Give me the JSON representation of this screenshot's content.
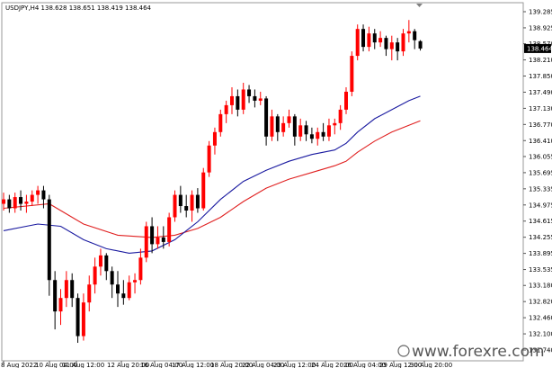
{
  "chart_data": {
    "type": "candlestick",
    "symbol_line": "USDJPY,H4  138.628 138.651 138.419 138.464",
    "y_ticks": [
      139.285,
      138.925,
      138.57,
      138.21,
      137.85,
      137.49,
      137.13,
      136.77,
      136.41,
      136.055,
      135.695,
      135.335,
      134.975,
      134.615,
      134.255,
      133.895,
      133.535,
      133.18,
      132.82,
      132.46,
      132.1,
      131.74
    ],
    "ylim": [
      131.74,
      139.285
    ],
    "current_price": "138.464",
    "x_labels": [
      "8 Aug 2022",
      "10 Aug 04:00",
      "11 Aug 12:00",
      "12 Aug 20:00",
      "16 Aug 04:00",
      "17 Aug 12:00",
      "18 Aug 20:00",
      "22 Aug 04:00",
      "23 Aug 12:00",
      "24 Aug 20:00",
      "26 Aug 04:00",
      "29 Aug 12:00",
      "30 Aug 20:00"
    ],
    "bull_color": "#ff0000",
    "bear_color": "#000000",
    "candles": [
      {
        "o": 135.0,
        "h": 135.25,
        "l": 134.85,
        "c": 135.1
      },
      {
        "o": 135.1,
        "h": 135.2,
        "l": 134.8,
        "c": 134.9
      },
      {
        "o": 134.9,
        "h": 135.25,
        "l": 134.8,
        "c": 135.15
      },
      {
        "o": 135.15,
        "h": 135.3,
        "l": 134.85,
        "c": 135.0
      },
      {
        "o": 135.0,
        "h": 135.2,
        "l": 134.8,
        "c": 135.05
      },
      {
        "o": 135.05,
        "h": 135.3,
        "l": 134.95,
        "c": 135.2
      },
      {
        "o": 135.2,
        "h": 135.4,
        "l": 135.0,
        "c": 135.3
      },
      {
        "o": 135.3,
        "h": 135.4,
        "l": 134.9,
        "c": 135.1
      },
      {
        "o": 135.1,
        "h": 135.2,
        "l": 132.95,
        "c": 133.3
      },
      {
        "o": 133.3,
        "h": 133.5,
        "l": 132.2,
        "c": 132.6
      },
      {
        "o": 132.6,
        "h": 133.1,
        "l": 132.3,
        "c": 132.9
      },
      {
        "o": 132.9,
        "h": 133.5,
        "l": 132.7,
        "c": 133.3
      },
      {
        "o": 133.3,
        "h": 133.45,
        "l": 132.7,
        "c": 132.9
      },
      {
        "o": 132.9,
        "h": 133.0,
        "l": 131.9,
        "c": 132.05
      },
      {
        "o": 132.05,
        "h": 133.0,
        "l": 131.95,
        "c": 132.8
      },
      {
        "o": 132.8,
        "h": 133.4,
        "l": 132.6,
        "c": 133.2
      },
      {
        "o": 133.2,
        "h": 133.8,
        "l": 133.0,
        "c": 133.6
      },
      {
        "o": 133.6,
        "h": 134.0,
        "l": 133.4,
        "c": 133.85
      },
      {
        "o": 133.85,
        "h": 133.9,
        "l": 133.3,
        "c": 133.5
      },
      {
        "o": 133.5,
        "h": 133.6,
        "l": 132.9,
        "c": 133.2
      },
      {
        "o": 133.2,
        "h": 133.5,
        "l": 132.7,
        "c": 133.0
      },
      {
        "o": 133.0,
        "h": 133.3,
        "l": 132.75,
        "c": 132.9
      },
      {
        "o": 132.9,
        "h": 133.4,
        "l": 132.85,
        "c": 133.25
      },
      {
        "o": 133.25,
        "h": 133.45,
        "l": 133.0,
        "c": 133.3
      },
      {
        "o": 133.3,
        "h": 134.0,
        "l": 133.2,
        "c": 133.8
      },
      {
        "o": 133.8,
        "h": 134.6,
        "l": 133.7,
        "c": 134.5
      },
      {
        "o": 134.5,
        "h": 134.7,
        "l": 133.9,
        "c": 134.1
      },
      {
        "o": 134.1,
        "h": 134.5,
        "l": 134.0,
        "c": 134.25
      },
      {
        "o": 134.25,
        "h": 134.5,
        "l": 134.0,
        "c": 134.15
      },
      {
        "o": 134.15,
        "h": 134.8,
        "l": 134.05,
        "c": 134.7
      },
      {
        "o": 134.7,
        "h": 135.3,
        "l": 134.6,
        "c": 135.2
      },
      {
        "o": 135.2,
        "h": 135.4,
        "l": 134.8,
        "c": 134.95
      },
      {
        "o": 134.95,
        "h": 135.2,
        "l": 134.7,
        "c": 134.85
      },
      {
        "o": 134.85,
        "h": 135.3,
        "l": 134.6,
        "c": 135.2
      },
      {
        "o": 135.2,
        "h": 135.35,
        "l": 134.8,
        "c": 134.9
      },
      {
        "o": 134.9,
        "h": 135.8,
        "l": 134.85,
        "c": 135.7
      },
      {
        "o": 135.7,
        "h": 136.4,
        "l": 135.6,
        "c": 136.3
      },
      {
        "o": 136.3,
        "h": 136.7,
        "l": 136.1,
        "c": 136.6
      },
      {
        "o": 136.6,
        "h": 137.1,
        "l": 136.5,
        "c": 137.0
      },
      {
        "o": 137.0,
        "h": 137.3,
        "l": 136.8,
        "c": 137.2
      },
      {
        "o": 137.2,
        "h": 137.6,
        "l": 137.0,
        "c": 137.4
      },
      {
        "o": 137.4,
        "h": 137.55,
        "l": 136.95,
        "c": 137.1
      },
      {
        "o": 137.1,
        "h": 137.7,
        "l": 137.0,
        "c": 137.55
      },
      {
        "o": 137.55,
        "h": 137.65,
        "l": 137.25,
        "c": 137.4
      },
      {
        "o": 137.4,
        "h": 137.55,
        "l": 137.15,
        "c": 137.3
      },
      {
        "o": 137.3,
        "h": 137.5,
        "l": 137.2,
        "c": 137.35
      },
      {
        "o": 137.35,
        "h": 137.4,
        "l": 136.3,
        "c": 136.5
      },
      {
        "o": 136.5,
        "h": 137.1,
        "l": 136.4,
        "c": 136.95
      },
      {
        "o": 136.95,
        "h": 137.0,
        "l": 136.4,
        "c": 136.6
      },
      {
        "o": 136.6,
        "h": 136.95,
        "l": 136.5,
        "c": 136.8
      },
      {
        "o": 136.8,
        "h": 137.1,
        "l": 136.7,
        "c": 136.95
      },
      {
        "o": 136.95,
        "h": 137.0,
        "l": 136.3,
        "c": 136.5
      },
      {
        "o": 136.5,
        "h": 136.9,
        "l": 136.4,
        "c": 136.75
      },
      {
        "o": 136.75,
        "h": 136.85,
        "l": 136.4,
        "c": 136.55
      },
      {
        "o": 136.55,
        "h": 136.7,
        "l": 136.35,
        "c": 136.45
      },
      {
        "o": 136.45,
        "h": 136.7,
        "l": 136.3,
        "c": 136.6
      },
      {
        "o": 136.6,
        "h": 136.8,
        "l": 136.4,
        "c": 136.5
      },
      {
        "o": 136.5,
        "h": 136.9,
        "l": 136.4,
        "c": 136.75
      },
      {
        "o": 136.75,
        "h": 136.9,
        "l": 136.55,
        "c": 136.8
      },
      {
        "o": 136.8,
        "h": 137.2,
        "l": 136.65,
        "c": 137.1
      },
      {
        "o": 137.1,
        "h": 137.6,
        "l": 137.0,
        "c": 137.5
      },
      {
        "o": 137.5,
        "h": 138.4,
        "l": 137.4,
        "c": 138.3
      },
      {
        "o": 138.3,
        "h": 139.0,
        "l": 138.2,
        "c": 138.9
      },
      {
        "o": 138.9,
        "h": 139.0,
        "l": 138.4,
        "c": 138.5
      },
      {
        "o": 138.5,
        "h": 138.95,
        "l": 138.4,
        "c": 138.8
      },
      {
        "o": 138.8,
        "h": 138.9,
        "l": 138.45,
        "c": 138.6
      },
      {
        "o": 138.6,
        "h": 138.85,
        "l": 138.5,
        "c": 138.7
      },
      {
        "o": 138.7,
        "h": 138.75,
        "l": 138.3,
        "c": 138.45
      },
      {
        "o": 138.45,
        "h": 138.75,
        "l": 138.2,
        "c": 138.6
      },
      {
        "o": 138.6,
        "h": 138.7,
        "l": 138.2,
        "c": 138.4
      },
      {
        "o": 138.4,
        "h": 138.9,
        "l": 138.3,
        "c": 138.8
      },
      {
        "o": 138.8,
        "h": 139.1,
        "l": 138.6,
        "c": 138.85
      },
      {
        "o": 138.85,
        "h": 138.9,
        "l": 138.45,
        "c": 138.65
      },
      {
        "o": 138.628,
        "h": 138.651,
        "l": 138.419,
        "c": 138.464
      }
    ],
    "ma_red": [
      [
        0,
        134.9
      ],
      [
        8,
        135.0
      ],
      [
        14,
        134.55
      ],
      [
        20,
        134.3
      ],
      [
        26,
        134.25
      ],
      [
        30,
        134.3
      ],
      [
        34,
        134.45
      ],
      [
        38,
        134.7
      ],
      [
        42,
        135.05
      ],
      [
        46,
        135.35
      ],
      [
        50,
        135.55
      ],
      [
        54,
        135.7
      ],
      [
        58,
        135.85
      ],
      [
        60,
        135.95
      ],
      [
        62,
        136.15
      ],
      [
        65,
        136.4
      ],
      [
        68,
        136.6
      ],
      [
        71,
        136.75
      ],
      [
        73,
        136.85
      ]
    ],
    "ma_blue": [
      [
        0,
        134.4
      ],
      [
        6,
        134.55
      ],
      [
        10,
        134.5
      ],
      [
        14,
        134.2
      ],
      [
        18,
        134.0
      ],
      [
        22,
        133.9
      ],
      [
        26,
        133.95
      ],
      [
        30,
        134.2
      ],
      [
        34,
        134.6
      ],
      [
        38,
        135.1
      ],
      [
        42,
        135.5
      ],
      [
        46,
        135.75
      ],
      [
        50,
        135.95
      ],
      [
        54,
        136.1
      ],
      [
        58,
        136.2
      ],
      [
        60,
        136.35
      ],
      [
        62,
        136.6
      ],
      [
        65,
        136.9
      ],
      [
        68,
        137.1
      ],
      [
        71,
        137.3
      ],
      [
        73,
        137.4
      ]
    ]
  },
  "watermark": "www.forexre.com"
}
